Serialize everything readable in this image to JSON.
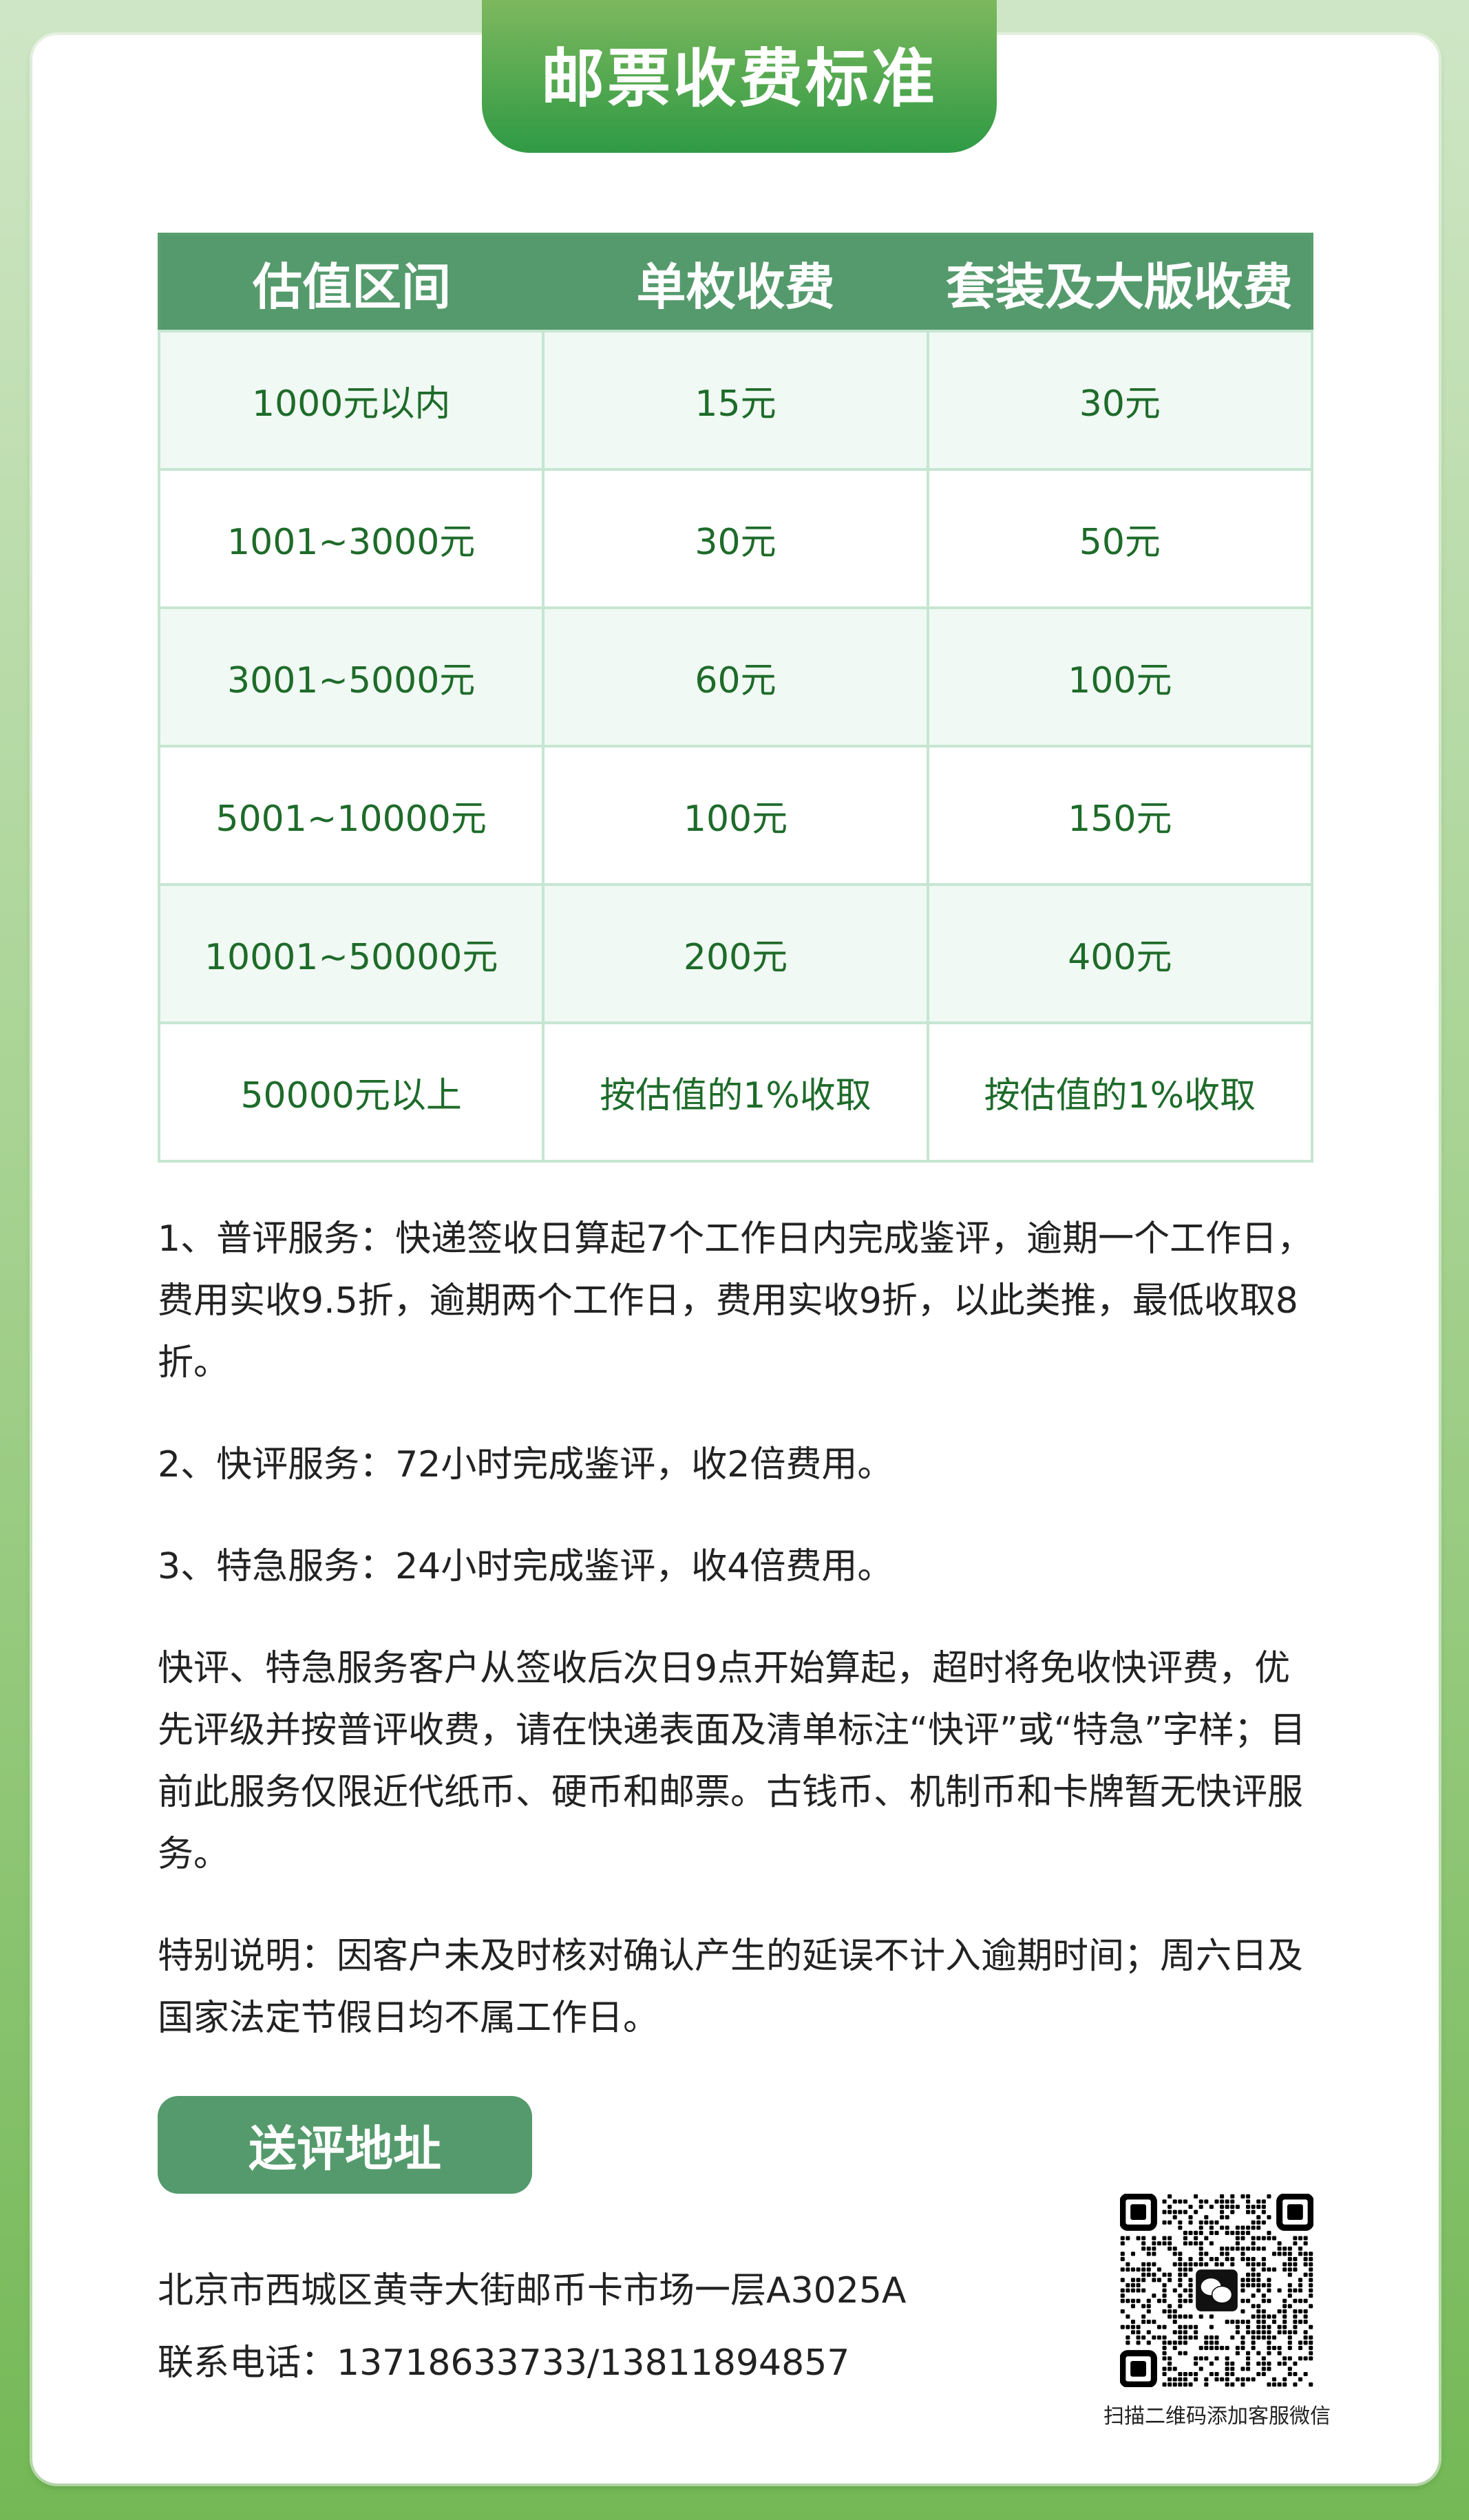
{
  "title": "邮票收费标准",
  "table": {
    "headers": [
      "估值区间",
      "单枚收费",
      "套装及大版收费"
    ],
    "rows": [
      [
        "1000元以内",
        "15元",
        "30元"
      ],
      [
        "1001~3000元",
        "30元",
        "50元"
      ],
      [
        "3001~5000元",
        "60元",
        "100元"
      ],
      [
        "5001~10000元",
        "100元",
        "150元"
      ],
      [
        "10001~50000元",
        "200元",
        "400元"
      ],
      [
        "50000元以上",
        "按估值的1%收取",
        "按估值的1%收取"
      ]
    ]
  },
  "notes": [
    "1、普评服务：快递签收日算起7个工作日内完成鉴评，逾期一个工作日，费用实收9.5折，逾期两个工作日，费用实收9折，以此类推，最低收取8折。",
    "2、快评服务：72小时完成鉴评，收2倍费用。",
    "3、特急服务：24小时完成鉴评，收4倍费用。",
    "快评、特急服务客户从签收后次日9点开始算起，超时将免收快评费，优先评级并按普评收费，请在快递表面及清单标注“快评”或“特急”字样；目前此服务仅限近代纸币、硬币和邮票。古钱币、机制币和卡牌暂无快评服务。",
    "特别说明：因客户未及时核对确认产生的延误不计入逾期时间；周六日及国家法定节假日均不属工作日。"
  ],
  "address": {
    "heading": "送评地址",
    "line": "北京市西城区黄寺大街邮币卡市场一层A3025A",
    "phone": "联系电话：13718633733/13811894857"
  },
  "qr": {
    "caption": "扫描二维码添加客服微信",
    "icon": "wechat-icon"
  },
  "colors": {
    "header": "#559a6c",
    "cell_text": "#1e6b2a",
    "accent": "#2f9a44"
  }
}
